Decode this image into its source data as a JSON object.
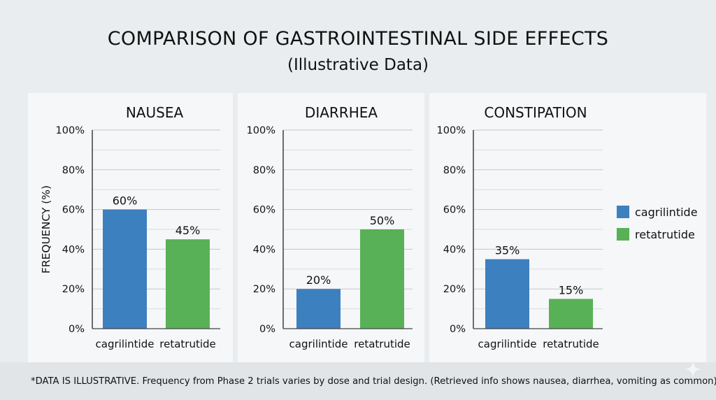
{
  "header": {
    "title": "COMPARISON OF GASTROINTESTINAL SIDE EFFECTS",
    "subtitle": "(Illustrative Data)"
  },
  "footnote": "*DATA IS ILLUSTRATIVE. Frequency from Phase 2 trials varies by dose and trial design. (Retrieved info shows nausea, diarrhea, vomiting as common)",
  "chart_data": [
    {
      "type": "bar",
      "title": "NAUSEA",
      "categories": [
        "cagrilintide",
        "retatrutide"
      ],
      "values": [
        60,
        45
      ],
      "data_labels": [
        "60%",
        "45%"
      ],
      "ylabel": "FREQUENCY (%)",
      "ylim": [
        0,
        100
      ],
      "yticks": [
        "0%",
        "20%",
        "40%",
        "60%",
        "80%",
        "100%"
      ],
      "grid": true
    },
    {
      "type": "bar",
      "title": "DIARRHEA",
      "categories": [
        "cagrilintide",
        "retatrutide"
      ],
      "values": [
        20,
        50
      ],
      "data_labels": [
        "20%",
        "50%"
      ],
      "ylim": [
        0,
        100
      ],
      "yticks": [
        "0%",
        "20%",
        "40%",
        "60%",
        "80%",
        "100%"
      ],
      "grid": true
    },
    {
      "type": "bar",
      "title": "CONSTIPATION",
      "categories": [
        "cagrilintide",
        "retatrutide"
      ],
      "values": [
        35,
        15
      ],
      "data_labels": [
        "35%",
        "15%"
      ],
      "ylim": [
        0,
        100
      ],
      "yticks": [
        "0%",
        "20%",
        "40%",
        "60%",
        "80%",
        "100%"
      ],
      "grid": true
    }
  ],
  "legend": {
    "position": "right",
    "items": [
      {
        "label": "cagrilintide",
        "color": "#3d80bf"
      },
      {
        "label": "retatrutide",
        "color": "#58b157"
      }
    ]
  },
  "colors": {
    "cagrilintide": "#3d80bf",
    "retatrutide": "#58b157"
  }
}
